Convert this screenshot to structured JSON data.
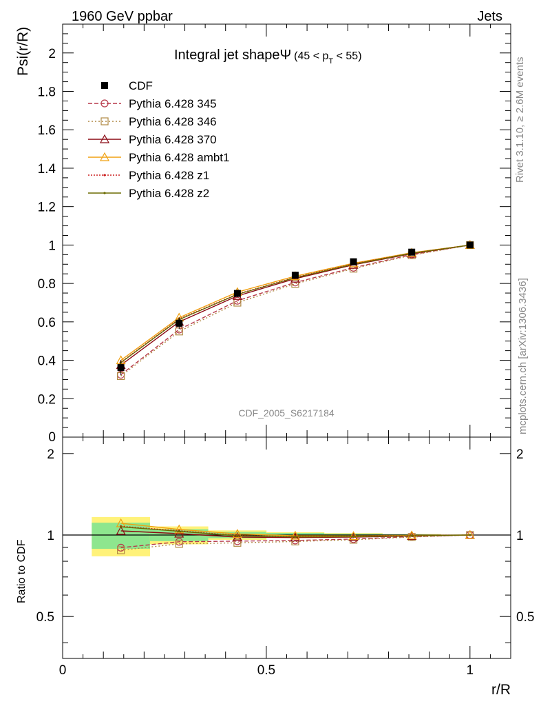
{
  "header": {
    "left": "1960 GeV ppbar",
    "right": "Jets"
  },
  "side_labels": {
    "rivet": "Rivet 3.1.10, ≥ 2.6M events",
    "mcplots": "mcplots.cern.ch [arXiv:1306.3436]"
  },
  "watermark": "CDF_2005_S6217184",
  "chart_data": {
    "type": "line",
    "title": "Integral jet shapeΨ",
    "title_cut": "(45 < p",
    "title_cut_sub": "T",
    "title_cut_end": " < 55)",
    "xlabel": "r/R",
    "ylabel": "Psi(r/R)",
    "ratio_ylabel": "Ratio to CDF",
    "xlim": [
      0,
      1.1
    ],
    "ylim": [
      0,
      2.15
    ],
    "ratio_ylim": [
      0.35,
      2.3
    ],
    "grid": false,
    "legend_position": "top-left",
    "x_ticks": [
      "0",
      "0.5",
      "1"
    ],
    "y_ticks": [
      "0.2",
      "0.4",
      "0.6",
      "0.8",
      "1",
      "1.2",
      "1.4",
      "1.6",
      "1.8",
      "2"
    ],
    "y_tick_bottom": "0",
    "ratio_ticks_left": [
      "0.5",
      "1",
      "2"
    ],
    "ratio_ticks_right": [
      "0.5",
      "1",
      "2"
    ],
    "x": [
      0.143,
      0.286,
      0.429,
      0.571,
      0.714,
      0.857,
      1.0
    ],
    "data": {
      "name": "CDF",
      "values": [
        0.362,
        0.593,
        0.748,
        0.843,
        0.913,
        0.963,
        1.0
      ],
      "band_inner": [
        0.04,
        0.03,
        0.02,
        0.015,
        0.01,
        0.005,
        0.0
      ],
      "band_outer": [
        0.06,
        0.045,
        0.03,
        0.02,
        0.015,
        0.008,
        0.0
      ]
    },
    "series": [
      {
        "name": "Pythia 6.428 345",
        "color": "#b7394a",
        "dash": "6,3",
        "marker": "circle",
        "values": [
          0.325,
          0.56,
          0.71,
          0.805,
          0.882,
          0.95,
          1.0
        ]
      },
      {
        "name": "Pythia 6.428 346",
        "color": "#b08944",
        "dash": "2,3",
        "marker": "square",
        "values": [
          0.318,
          0.55,
          0.7,
          0.798,
          0.877,
          0.947,
          1.0
        ]
      },
      {
        "name": "Pythia 6.428 370",
        "color": "#8b0a14",
        "dash": "",
        "marker": "triangle",
        "values": [
          0.375,
          0.6,
          0.735,
          0.825,
          0.897,
          0.955,
          1.0
        ]
      },
      {
        "name": "Pythia 6.428 ambt1",
        "color": "#f0a010",
        "dash": "",
        "marker": "triangle",
        "values": [
          0.4,
          0.622,
          0.755,
          0.838,
          0.905,
          0.96,
          1.0
        ]
      },
      {
        "name": "Pythia 6.428 z1",
        "color": "#cc1f1f",
        "dash": "2,2",
        "marker": "dot",
        "values": [
          0.39,
          0.615,
          0.745,
          0.832,
          0.902,
          0.958,
          1.0
        ]
      },
      {
        "name": "Pythia 6.428 z2",
        "color": "#6b6b00",
        "dash": "",
        "marker": "dot",
        "values": [
          0.388,
          0.612,
          0.743,
          0.83,
          0.9,
          0.957,
          1.0
        ]
      }
    ]
  }
}
